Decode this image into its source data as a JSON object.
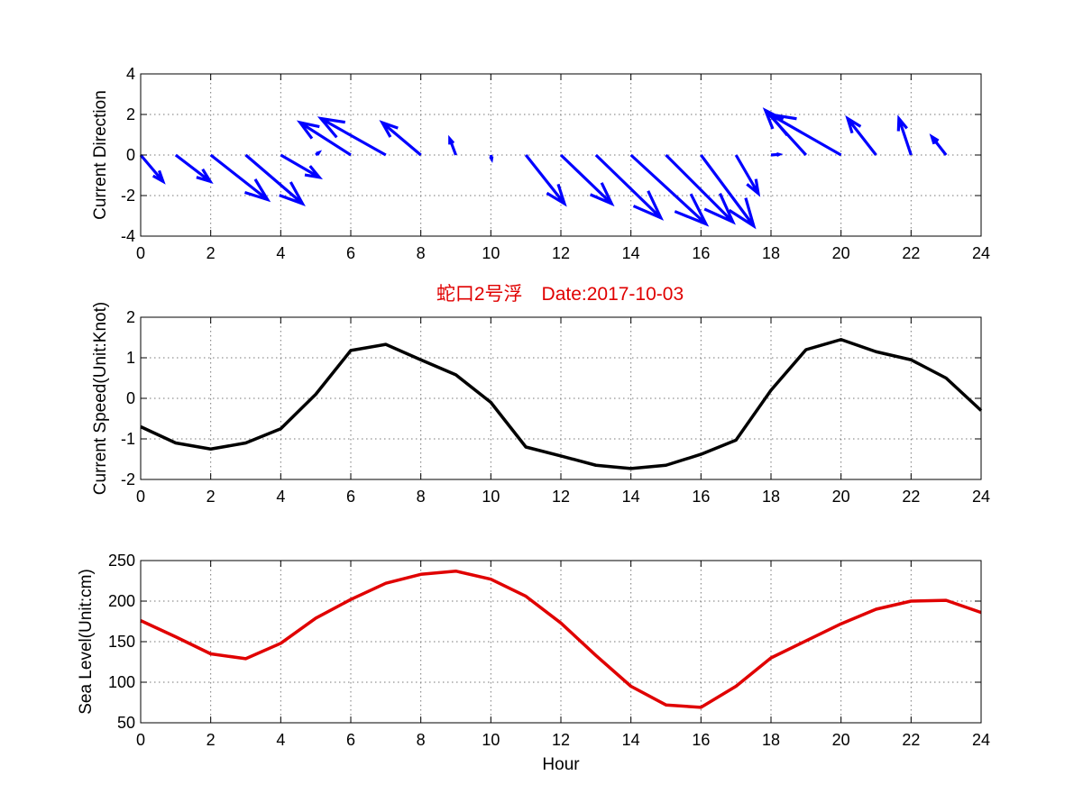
{
  "title": "蛇口2号浮　Date:2017-10-03",
  "colors": {
    "arrows": "#0000ff",
    "speed": "#000000",
    "level": "#e00000",
    "title": "#e00000"
  },
  "chart_data": [
    {
      "type": "quiver",
      "ylabel": "Current Direction",
      "xlim": [
        0,
        24
      ],
      "ylim": [
        -4,
        4
      ],
      "xticks": [
        0,
        2,
        4,
        6,
        8,
        10,
        12,
        14,
        16,
        18,
        20,
        22,
        24
      ],
      "yticks": [
        -4,
        -2,
        0,
        2,
        4
      ],
      "grid": true,
      "x": [
        0,
        1,
        2,
        3,
        4,
        5,
        6,
        7,
        8,
        9,
        10,
        11,
        12,
        13,
        14,
        15,
        16,
        17,
        18,
        19,
        20,
        21,
        22,
        23
      ],
      "u": [
        1.1,
        1.7,
        2.8,
        2.8,
        1.9,
        0.15,
        -2.5,
        -3.2,
        -1.9,
        -0.3,
        0.04,
        1.9,
        2.5,
        3.2,
        3.7,
        3.3,
        2.6,
        1.1,
        0.4,
        -2.0,
        -3.5,
        -1.4,
        -0.6,
        -0.7
      ],
      "v": [
        -1.3,
        -1.3,
        -2.2,
        -2.4,
        -1.1,
        0.12,
        1.6,
        1.8,
        1.6,
        0.8,
        -0.2,
        -2.4,
        -2.4,
        -3.1,
        -3.4,
        -3.3,
        -3.5,
        -1.9,
        0.03,
        2.2,
        2.0,
        1.8,
        1.8,
        0.9
      ]
    },
    {
      "type": "line",
      "ylabel": "Current Speed(Unit:Knot)",
      "xlim": [
        0,
        24
      ],
      "ylim": [
        -2,
        2
      ],
      "xticks": [
        0,
        2,
        4,
        6,
        8,
        10,
        12,
        14,
        16,
        18,
        20,
        22,
        24
      ],
      "yticks": [
        -2,
        -1,
        0,
        1,
        2
      ],
      "grid": true,
      "x": [
        0,
        1,
        2,
        3,
        4,
        5,
        6,
        7,
        8,
        9,
        10,
        11,
        12,
        13,
        14,
        15,
        16,
        17,
        18,
        19,
        20,
        21,
        22,
        23,
        24
      ],
      "y": [
        -0.7,
        -1.1,
        -1.25,
        -1.1,
        -0.75,
        0.1,
        1.18,
        1.33,
        0.95,
        0.58,
        -0.1,
        -1.2,
        -1.42,
        -1.65,
        -1.73,
        -1.65,
        -1.38,
        -1.03,
        0.2,
        1.2,
        1.45,
        1.15,
        0.95,
        0.5,
        -0.3
      ]
    },
    {
      "type": "line",
      "ylabel": "Sea Level(Unit:cm)",
      "xlabel": "Hour",
      "xlim": [
        0,
        24
      ],
      "ylim": [
        50,
        250
      ],
      "xticks": [
        0,
        2,
        4,
        6,
        8,
        10,
        12,
        14,
        16,
        18,
        20,
        22,
        24
      ],
      "yticks": [
        50,
        100,
        150,
        200,
        250
      ],
      "grid": true,
      "x": [
        0,
        1,
        2,
        3,
        4,
        5,
        6,
        7,
        8,
        9,
        10,
        11,
        12,
        13,
        14,
        15,
        16,
        17,
        18,
        19,
        20,
        21,
        22,
        23,
        24
      ],
      "y": [
        176,
        156,
        135,
        129,
        148,
        179,
        202,
        222,
        233,
        237,
        227,
        206,
        173,
        133,
        95,
        72,
        69,
        95,
        130,
        151,
        172,
        190,
        200,
        201,
        186
      ]
    }
  ]
}
